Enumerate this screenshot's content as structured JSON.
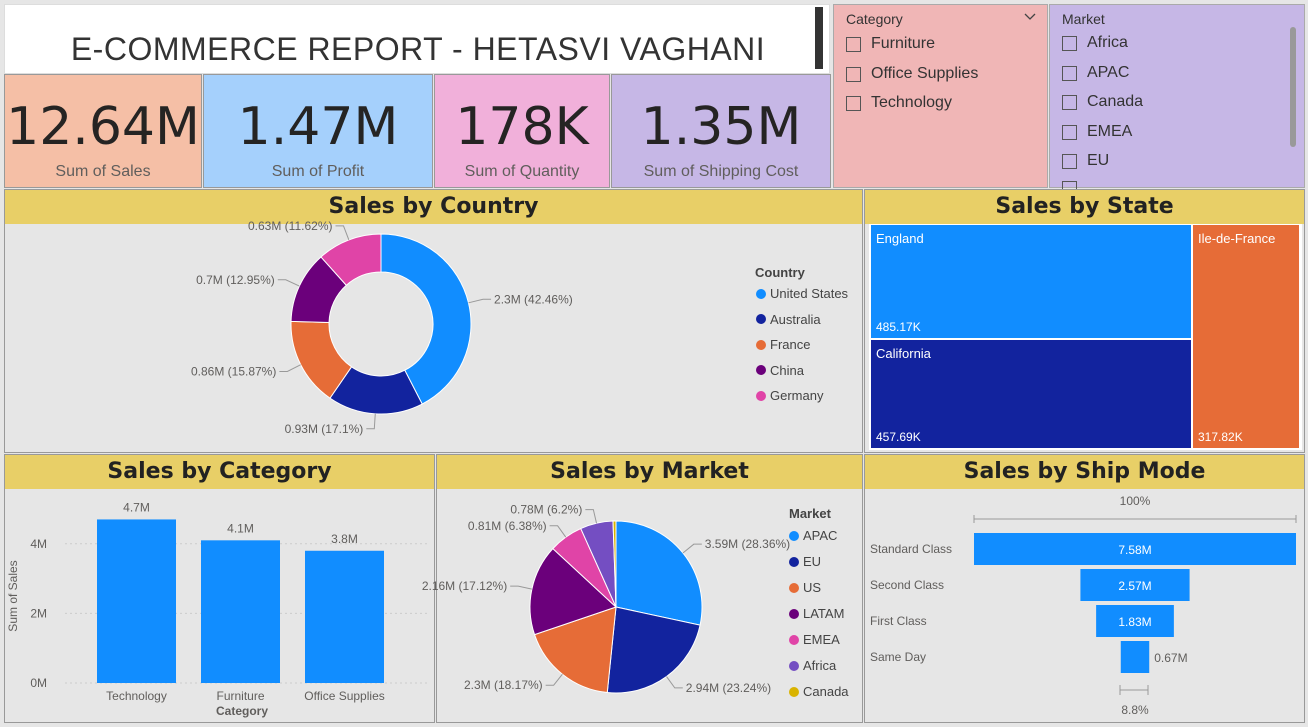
{
  "header": {
    "title": "E-COMMERCE REPORT  - HETASVI VAGHANI"
  },
  "kpis": [
    {
      "value": "12.64M",
      "label": "Sum of Sales"
    },
    {
      "value": "1.47M",
      "label": "Sum of Profit"
    },
    {
      "value": "178K",
      "label": "Sum of Quantity"
    },
    {
      "value": "1.35M",
      "label": "Sum of Shipping Cost"
    }
  ],
  "category_slicer": {
    "title": "Category",
    "items": [
      "Furniture",
      "Office Supplies",
      "Technology"
    ]
  },
  "market_slicer": {
    "title": "Market",
    "items": [
      "Africa",
      "APAC",
      "Canada",
      "EMEA",
      "EU"
    ]
  },
  "colors": {
    "blue": "#118dff",
    "navy": "#12239e",
    "orange": "#e66c37",
    "purple": "#6b007b",
    "pink": "#e044a7",
    "violet": "#744ec2",
    "gold": "#d9b300"
  },
  "panels": {
    "country": {
      "title": "Sales by Country",
      "legend_title": "Country"
    },
    "state": {
      "title": "Sales by State"
    },
    "category": {
      "title": "Sales by Category",
      "xlabel": "Category",
      "ylabel": "Sum of Sales"
    },
    "market": {
      "title": "Sales by Market",
      "legend_title": "Market"
    },
    "shipmode": {
      "title": "Sales by Ship Mode",
      "top_pct": "100%",
      "bottom_pct": "8.8%"
    }
  },
  "chart_data": [
    {
      "type": "pie",
      "donut": true,
      "title": "Sales by Country",
      "legend_title": "Country",
      "categories": [
        "United States",
        "Australia",
        "France",
        "China",
        "Germany"
      ],
      "values": [
        2.3,
        0.93,
        0.86,
        0.7,
        0.63
      ],
      "labels": [
        "2.3M (42.46%)",
        "0.93M (17.1%)",
        "0.86M (15.87%)",
        "0.7M (12.95%)",
        "0.63M (11.62%)"
      ],
      "colors": [
        "#118dff",
        "#12239e",
        "#e66c37",
        "#6b007b",
        "#e044a7"
      ]
    },
    {
      "type": "heatmap",
      "subtype": "treemap",
      "title": "Sales by State",
      "categories": [
        "England",
        "California",
        "Ile-de-France"
      ],
      "values": [
        485.17,
        457.69,
        317.82
      ],
      "labels": [
        "485.17K",
        "457.69K",
        "317.82K"
      ],
      "colors": [
        "#118dff",
        "#12239e",
        "#e66c37"
      ]
    },
    {
      "type": "bar",
      "title": "Sales by Category",
      "categories": [
        "Technology",
        "Furniture",
        "Office Supplies"
      ],
      "values": [
        4.7,
        4.1,
        3.8
      ],
      "labels": [
        "4.7M",
        "4.1M",
        "3.8M"
      ],
      "ylim": [
        0,
        5
      ],
      "yticks": [
        "0M",
        "2M",
        "4M"
      ],
      "xlabel": "Category",
      "ylabel": "Sum of Sales",
      "color": "#118dff"
    },
    {
      "type": "pie",
      "title": "Sales by Market",
      "legend_title": "Market",
      "categories": [
        "APAC",
        "EU",
        "US",
        "LATAM",
        "EMEA",
        "Africa",
        "Canada"
      ],
      "values": [
        3.59,
        2.94,
        2.3,
        2.16,
        0.81,
        0.78,
        0.07
      ],
      "labels": [
        "3.59M (28.36%)",
        "2.94M (23.24%)",
        "2.3M (18.17%)",
        "2.16M (17.12%)",
        "0.81M (6.38%)",
        "0.78M (6.2%)",
        ""
      ],
      "colors": [
        "#118dff",
        "#12239e",
        "#e66c37",
        "#6b007b",
        "#e044a7",
        "#744ec2",
        "#d9b300"
      ]
    },
    {
      "type": "bar",
      "subtype": "funnel",
      "title": "Sales by Ship Mode",
      "categories": [
        "Standard Class",
        "Second Class",
        "First Class",
        "Same Day"
      ],
      "values": [
        7.58,
        2.57,
        1.83,
        0.67
      ],
      "labels": [
        "7.58M",
        "2.57M",
        "1.83M",
        "0.67M"
      ],
      "color": "#118dff"
    }
  ]
}
